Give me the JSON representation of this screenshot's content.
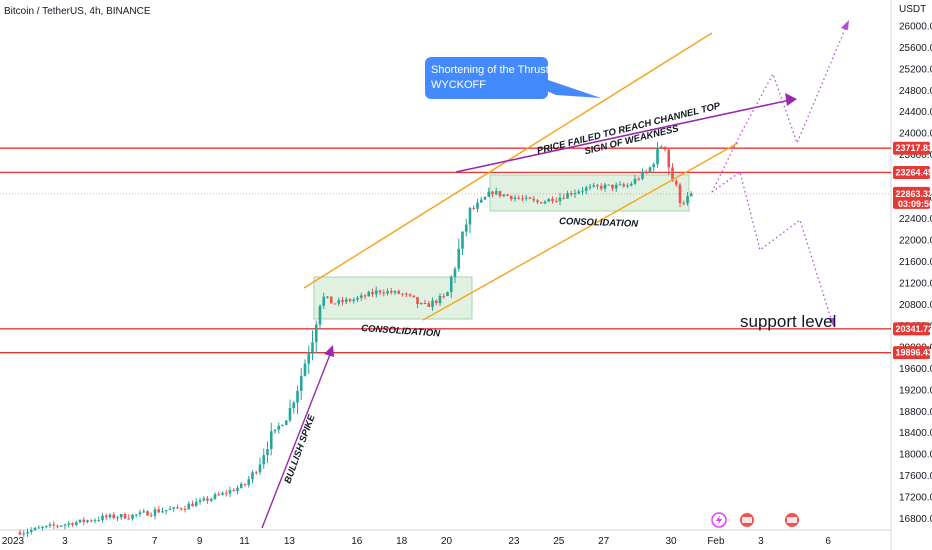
{
  "header": {
    "title": "Bitcoin / TetherUS, 4h, BINANCE"
  },
  "colors": {
    "up": "#26a69a",
    "down": "#ef5350",
    "level_line": "#e53935",
    "channel": "#f7a21b",
    "purple": "#9c27b0",
    "dotted": "#b04fd4",
    "consolidation_fill": "#c8e6c9",
    "callout": "#448aff"
  },
  "chart_data": {
    "type": "candlestick",
    "title": "Bitcoin / TetherUS, 4h, BINANCE",
    "currency": "USDT",
    "y_ticks": [
      "26000.00",
      "25600.00",
      "25200.00",
      "24800.00",
      "24400.00",
      "24000.00",
      "23600.00",
      "22800.00",
      "22400.00",
      "22000.00",
      "21600.00",
      "21200.00",
      "20800.00",
      "20400.00",
      "20000.00",
      "19600.00",
      "19200.00",
      "18800.00",
      "18400.00",
      "18000.00",
      "17600.00",
      "17200.00",
      "16800.00"
    ],
    "x_ticks": [
      "2023",
      "3",
      "5",
      "7",
      "9",
      "11",
      "13",
      "16",
      "18",
      "20",
      "23",
      "25",
      "27",
      "30",
      "Feb",
      "3",
      "6"
    ],
    "price_tags": [
      {
        "label": "23717.83",
        "price": 23717.83,
        "kind": "level"
      },
      {
        "label": "23264.45",
        "price": 23264.45,
        "kind": "level"
      },
      {
        "label": "22863.32",
        "sub": "03:09:56",
        "price": 22863.32,
        "kind": "current"
      },
      {
        "label": "20341.72",
        "price": 20341.72,
        "kind": "level"
      },
      {
        "label": "19896.43",
        "price": 19896.43,
        "kind": "level"
      }
    ],
    "annotations": {
      "callout": [
        "Shortening of the Thrust",
        "WYCKOFF"
      ],
      "channel_top": "PRICE FAILED TO REACH CHANNEL TOP",
      "weakness": "SIGN OF WEAKNESS",
      "consolidation_1": "CONSOLIDATION",
      "consolidation_2": "CONSOLIDATION",
      "spike": "BULLISH SPIKE",
      "support": "support level"
    },
    "candle_anchors": [
      [
        "2023-01-01",
        16540
      ],
      [
        "2023-01-02",
        16620
      ],
      [
        "2023-01-03",
        16690
      ],
      [
        "2023-01-04",
        16760
      ],
      [
        "2023-01-05",
        16830
      ],
      [
        "2023-01-06",
        16850
      ],
      [
        "2023-01-07",
        16930
      ],
      [
        "2023-01-08",
        16980
      ],
      [
        "2023-01-09",
        17100
      ],
      [
        "2023-01-10",
        17250
      ],
      [
        "2023-01-11",
        17420
      ],
      [
        "2023-01-11T12",
        17700
      ],
      [
        "2023-01-12",
        18200
      ],
      [
        "2023-01-13",
        18800
      ],
      [
        "2023-01-13T12",
        19450
      ],
      [
        "2023-01-14",
        20150
      ],
      [
        "2023-01-14T08",
        20950
      ],
      [
        "2023-01-15",
        20820
      ],
      [
        "2023-01-16",
        20900
      ],
      [
        "2023-01-17",
        21050
      ],
      [
        "2023-01-18",
        21000
      ],
      [
        "2023-01-19",
        20750
      ],
      [
        "2023-01-20",
        20950
      ],
      [
        "2023-01-21",
        22500
      ],
      [
        "2023-01-22",
        22900
      ],
      [
        "2023-01-23",
        22800
      ],
      [
        "2023-01-24",
        22700
      ],
      [
        "2023-01-25",
        22800
      ],
      [
        "2023-01-26",
        22950
      ],
      [
        "2023-01-27",
        23000
      ],
      [
        "2023-01-28",
        23000
      ],
      [
        "2023-01-29",
        23300
      ],
      [
        "2023-01-29T16",
        23850
      ],
      [
        "2023-01-30",
        23200
      ],
      [
        "2023-01-30T12",
        22700
      ],
      [
        "2023-01-31",
        22870
      ]
    ]
  }
}
